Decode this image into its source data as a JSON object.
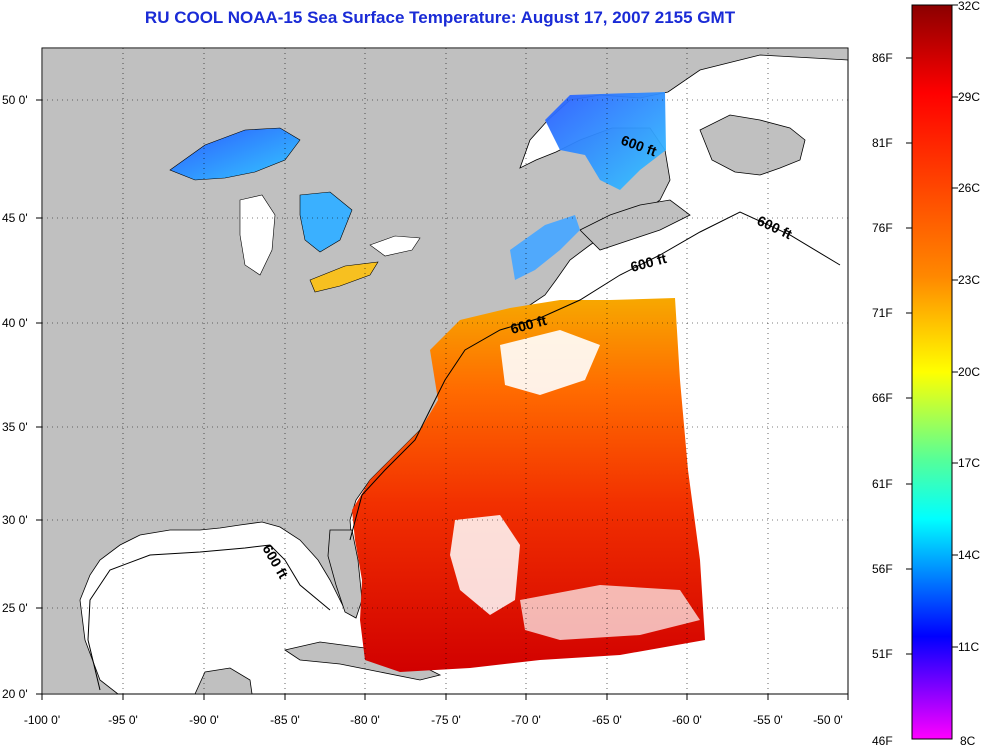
{
  "title": "RU COOL  NOAA-15  Sea Surface Temperature:  August 17, 2007 2155 GMT",
  "map": {
    "lon_labels": [
      "-100 0'",
      "-95 0'",
      "-90 0'",
      "-85 0'",
      "-80 0'",
      "-75 0'",
      "-70 0'",
      "-65 0'",
      "-60 0'",
      "-55 0'",
      "-50 0'"
    ],
    "lat_labels": [
      "50 0'",
      "45 0'",
      "40 0'",
      "35 0'",
      "30 0'",
      "25 0'",
      "20 0'"
    ],
    "lon_range": [
      -100,
      -50
    ],
    "lat_range": [
      20,
      52.5
    ],
    "contour_labels": [
      "600 ft",
      "600 ft",
      "600 ft",
      "600 ft",
      "600 ft"
    ],
    "colors": {
      "land": "#c0c0c0",
      "water_no_data": "#ffffff",
      "title": "#1a2bd6"
    }
  },
  "colorbar": {
    "fahrenheit_labels": [
      "86F",
      "81F",
      "76F",
      "71F",
      "66F",
      "61F",
      "56F",
      "51F",
      "46F"
    ],
    "celsius_labels": [
      "32C",
      "29C",
      "26C",
      "23C",
      "20C",
      "17C",
      "14C",
      "11C",
      "8C"
    ],
    "range_c": [
      8,
      32
    ],
    "gradient": [
      "#8b0000",
      "#ff0000",
      "#ff8000",
      "#ffff00",
      "#00ffff",
      "#0000ff",
      "#ff00ff"
    ]
  }
}
